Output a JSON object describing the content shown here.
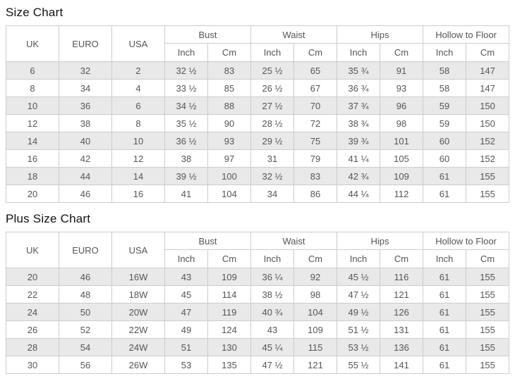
{
  "theme": {
    "background": "#ffffff",
    "stripe": "#e9e9e9",
    "border": "#cccccc",
    "text": "#555555",
    "title": "#111111"
  },
  "chart_data": [
    {
      "type": "table",
      "title": "Size Chart",
      "header": {
        "rowspan_cols": [
          "UK",
          "EURO",
          "USA"
        ],
        "groups": [
          {
            "label": "Bust",
            "subs": [
              "Inch",
              "Cm"
            ]
          },
          {
            "label": "Waist",
            "subs": [
              "Inch",
              "Cm"
            ]
          },
          {
            "label": "Hips",
            "subs": [
              "Inch",
              "Cm"
            ]
          },
          {
            "label": "Hollow to Floor",
            "subs": [
              "Inch",
              "Cm"
            ]
          }
        ]
      },
      "rows": [
        [
          "6",
          "32",
          "2",
          "32 ½",
          "83",
          "25 ½",
          "65",
          "35 ¾",
          "91",
          "58",
          "147"
        ],
        [
          "8",
          "34",
          "4",
          "33 ½",
          "85",
          "26 ½",
          "67",
          "36 ¾",
          "93",
          "58",
          "147"
        ],
        [
          "10",
          "36",
          "6",
          "34 ½",
          "88",
          "27 ½",
          "70",
          "37 ¾",
          "96",
          "59",
          "150"
        ],
        [
          "12",
          "38",
          "8",
          "35 ½",
          "90",
          "28 ½",
          "72",
          "38 ¾",
          "98",
          "59",
          "150"
        ],
        [
          "14",
          "40",
          "10",
          "36 ½",
          "93",
          "29 ½",
          "75",
          "39 ¾",
          "101",
          "60",
          "152"
        ],
        [
          "16",
          "42",
          "12",
          "38",
          "97",
          "31",
          "79",
          "41 ¼",
          "105",
          "60",
          "152"
        ],
        [
          "18",
          "44",
          "14",
          "39 ½",
          "100",
          "32 ½",
          "83",
          "42 ¾",
          "109",
          "61",
          "155"
        ],
        [
          "20",
          "46",
          "16",
          "41",
          "104",
          "34",
          "86",
          "44 ¼",
          "112",
          "61",
          "155"
        ]
      ]
    },
    {
      "type": "table",
      "title": "Plus Size Chart",
      "header": {
        "rowspan_cols": [
          "UK",
          "EURO",
          "USA"
        ],
        "groups": [
          {
            "label": "Bust",
            "subs": [
              "Inch",
              "Cm"
            ]
          },
          {
            "label": "Waist",
            "subs": [
              "Inch",
              "Cm"
            ]
          },
          {
            "label": "Hips",
            "subs": [
              "Inch",
              "Cm"
            ]
          },
          {
            "label": "Hollow to Floor",
            "subs": [
              "Inch",
              "Cm"
            ]
          }
        ]
      },
      "rows": [
        [
          "20",
          "46",
          "16W",
          "43",
          "109",
          "36 ¼",
          "92",
          "45 ½",
          "116",
          "61",
          "155"
        ],
        [
          "22",
          "48",
          "18W",
          "45",
          "114",
          "38 ½",
          "98",
          "47 ½",
          "121",
          "61",
          "155"
        ],
        [
          "24",
          "50",
          "20W",
          "47",
          "119",
          "40 ¾",
          "104",
          "49 ½",
          "126",
          "61",
          "155"
        ],
        [
          "26",
          "52",
          "22W",
          "49",
          "124",
          "43",
          "109",
          "51 ½",
          "131",
          "61",
          "155"
        ],
        [
          "28",
          "54",
          "24W",
          "51",
          "130",
          "45 ¼",
          "115",
          "53 ½",
          "136",
          "61",
          "155"
        ],
        [
          "30",
          "56",
          "26W",
          "53",
          "135",
          "47 ½",
          "121",
          "55 ½",
          "141",
          "61",
          "155"
        ]
      ]
    }
  ]
}
